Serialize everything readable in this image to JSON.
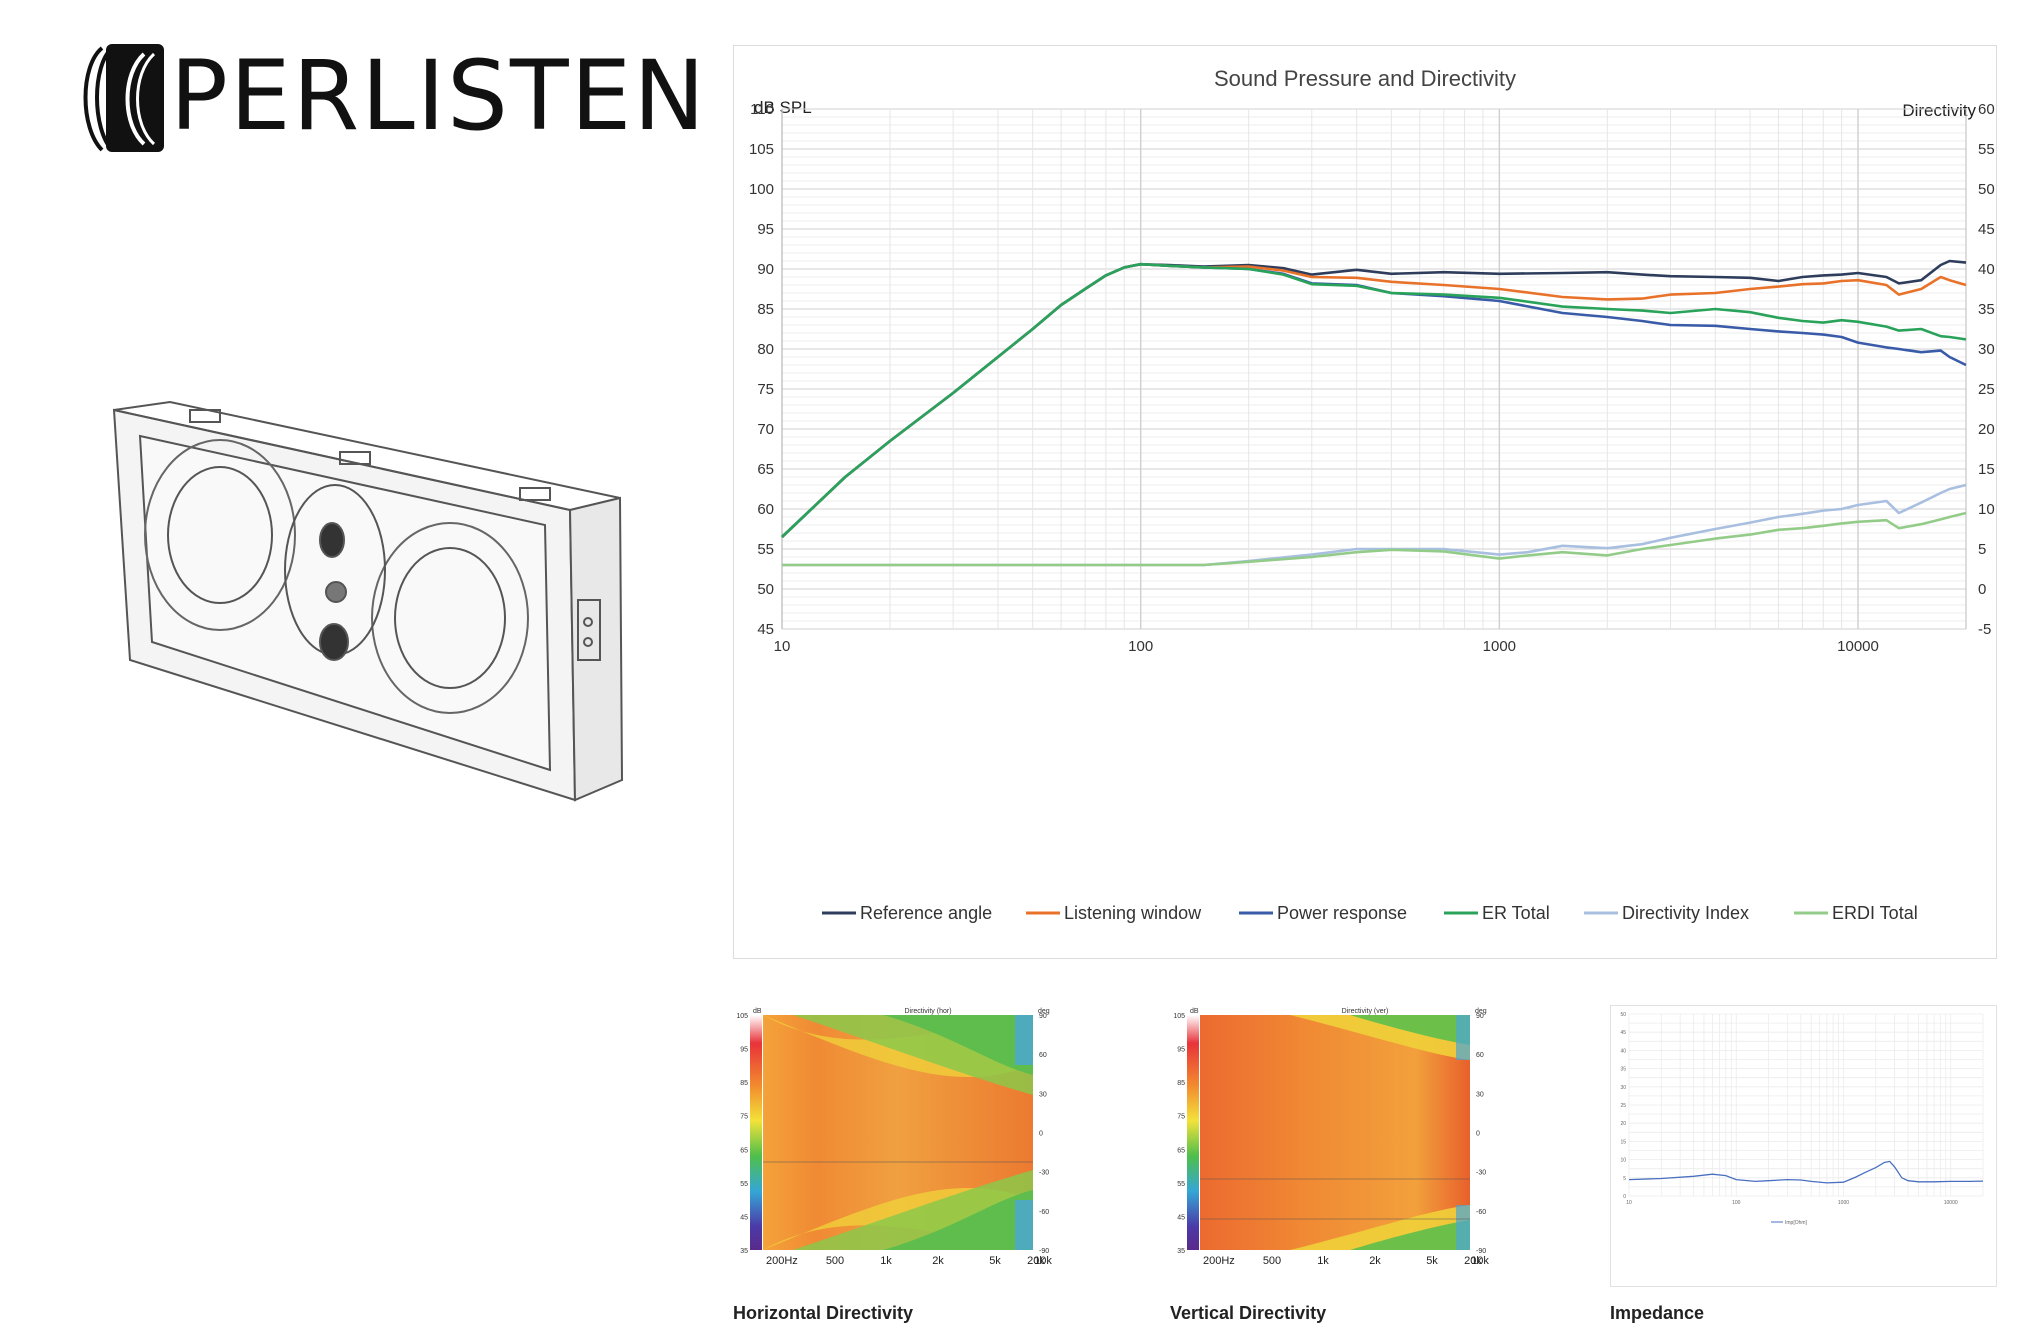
{
  "brand": {
    "name": "PERLISTEN"
  },
  "main_chart": {
    "title": "Sound Pressure and Directivity",
    "ylabel_left": "dB SPL",
    "ylabel_right": "Directivity"
  },
  "captions": {
    "horizontal": "Horizontal Directivity",
    "vertical": "Vertical Directivity",
    "impedance": "Impedance"
  },
  "chart_data": [
    {
      "type": "line",
      "title": "Sound Pressure and Directivity",
      "xlabel": "",
      "ylabel": "dB SPL",
      "ylabel_right": "Directivity",
      "x_scale": "log",
      "xlim": [
        10,
        20000
      ],
      "ylim": [
        45,
        110
      ],
      "ylim_right": [
        -5,
        60
      ],
      "x_ticks": [
        "10",
        "100",
        "1000",
        "10000"
      ],
      "y_ticks": [
        "110",
        "105",
        "100",
        "95",
        "90",
        "85",
        "80",
        "75",
        "70",
        "65",
        "60",
        "55",
        "50",
        "45"
      ],
      "y_ticks_right": [
        "60",
        "55",
        "50",
        "45",
        "40",
        "35",
        "30",
        "25",
        "20",
        "15",
        "10",
        "5",
        "0",
        "-5"
      ],
      "grid": true,
      "legend_position": "bottom",
      "series": [
        {
          "name": "Reference angle",
          "color": "#2f3d5c",
          "axis": "left",
          "x": [
            10,
            15,
            20,
            30,
            40,
            50,
            60,
            70,
            80,
            90,
            100,
            120,
            150,
            200,
            250,
            300,
            400,
            500,
            700,
            1000,
            1500,
            2000,
            2500,
            3000,
            4000,
            5000,
            6000,
            7000,
            8000,
            9000,
            10000,
            12000,
            13000,
            15000,
            17000,
            18000,
            20000
          ],
          "y": [
            56.5,
            64,
            68.5,
            74.5,
            79,
            82.5,
            85.5,
            87.5,
            89.2,
            90.2,
            90.6,
            90.5,
            90.3,
            90.5,
            90.1,
            89.3,
            89.9,
            89.4,
            89.6,
            89.4,
            89.5,
            89.6,
            89.3,
            89.1,
            89.0,
            88.9,
            88.5,
            89.0,
            89.2,
            89.3,
            89.5,
            89.0,
            88.2,
            88.6,
            90.5,
            91.0,
            90.8
          ]
        },
        {
          "name": "Listening window",
          "color": "#e8722a",
          "axis": "left",
          "x": [
            10,
            15,
            20,
            30,
            40,
            50,
            60,
            70,
            80,
            90,
            100,
            120,
            150,
            200,
            250,
            300,
            400,
            500,
            700,
            1000,
            1500,
            2000,
            2500,
            3000,
            4000,
            5000,
            6000,
            7000,
            8000,
            9000,
            10000,
            12000,
            13000,
            15000,
            17000,
            18000,
            20000
          ],
          "y": [
            56.5,
            64,
            68.5,
            74.5,
            79,
            82.5,
            85.5,
            87.5,
            89.2,
            90.2,
            90.6,
            90.4,
            90.2,
            90.3,
            89.8,
            89.0,
            88.9,
            88.4,
            88.0,
            87.5,
            86.5,
            86.2,
            86.3,
            86.8,
            87.0,
            87.5,
            87.8,
            88.1,
            88.2,
            88.5,
            88.6,
            88.0,
            86.8,
            87.5,
            89.0,
            88.6,
            88.0
          ]
        },
        {
          "name": "Power response",
          "color": "#3a5ba8",
          "axis": "left",
          "x": [
            10,
            15,
            20,
            30,
            40,
            50,
            60,
            70,
            80,
            90,
            100,
            120,
            150,
            200,
            250,
            300,
            400,
            500,
            700,
            1000,
            1500,
            2000,
            2500,
            3000,
            4000,
            5000,
            6000,
            7000,
            8000,
            9000,
            10000,
            12000,
            13000,
            15000,
            17000,
            18000,
            20000
          ],
          "y": [
            56.5,
            64,
            68.5,
            74.5,
            79,
            82.5,
            85.5,
            87.5,
            89.2,
            90.2,
            90.6,
            90.4,
            90.2,
            90.0,
            89.4,
            88.2,
            88.0,
            87.0,
            86.6,
            86.0,
            84.5,
            84.0,
            83.5,
            83.0,
            82.9,
            82.5,
            82.2,
            82.0,
            81.8,
            81.5,
            80.8,
            80.2,
            80.0,
            79.6,
            79.8,
            79.0,
            78.0
          ]
        },
        {
          "name": "ER Total",
          "color": "#2aa35a",
          "axis": "left",
          "x": [
            10,
            15,
            20,
            30,
            40,
            50,
            60,
            70,
            80,
            90,
            100,
            120,
            150,
            200,
            250,
            300,
            400,
            500,
            700,
            1000,
            1500,
            2000,
            2500,
            3000,
            4000,
            5000,
            6000,
            7000,
            8000,
            9000,
            10000,
            12000,
            13000,
            15000,
            17000,
            18000,
            20000
          ],
          "y": [
            56.5,
            64,
            68.5,
            74.5,
            79,
            82.5,
            85.5,
            87.5,
            89.2,
            90.2,
            90.6,
            90.4,
            90.2,
            90.0,
            89.3,
            88.1,
            87.9,
            87.0,
            86.8,
            86.4,
            85.3,
            85.0,
            84.8,
            84.5,
            85.0,
            84.6,
            83.9,
            83.5,
            83.3,
            83.6,
            83.4,
            82.8,
            82.3,
            82.5,
            81.6,
            81.5,
            81.2
          ]
        },
        {
          "name": "Directivity Index",
          "color": "#a8bfe0",
          "axis": "right",
          "x": [
            10,
            20,
            50,
            100,
            150,
            200,
            300,
            400,
            500,
            700,
            1000,
            1200,
            1500,
            2000,
            2500,
            3000,
            4000,
            5000,
            6000,
            7000,
            8000,
            9000,
            10000,
            12000,
            13000,
            15000,
            17000,
            18000,
            20000
          ],
          "y": [
            3,
            3,
            3,
            3,
            3,
            3.5,
            4.3,
            5,
            5,
            5,
            4.3,
            4.6,
            5.4,
            5.1,
            5.6,
            6.4,
            7.5,
            8.3,
            9.0,
            9.4,
            9.8,
            10.0,
            10.5,
            11.0,
            9.5,
            10.8,
            12.0,
            12.5,
            13.0
          ]
        },
        {
          "name": "ERDI Total",
          "color": "#93cc88",
          "axis": "right",
          "x": [
            10,
            20,
            50,
            100,
            150,
            200,
            300,
            400,
            500,
            700,
            1000,
            1200,
            1500,
            2000,
            2500,
            3000,
            4000,
            5000,
            6000,
            7000,
            8000,
            9000,
            10000,
            12000,
            13000,
            15000,
            17000,
            18000,
            20000
          ],
          "y": [
            3,
            3,
            3,
            3,
            3,
            3.4,
            4.0,
            4.6,
            4.9,
            4.7,
            3.8,
            4.2,
            4.6,
            4.2,
            5.0,
            5.5,
            6.3,
            6.8,
            7.4,
            7.6,
            7.9,
            8.2,
            8.4,
            8.6,
            7.6,
            8.1,
            8.7,
            9.0,
            9.5
          ]
        }
      ]
    },
    {
      "type": "heatmap",
      "title": "Directivity (hor)",
      "ylabel": "dB",
      "ylabel_right": "deg",
      "x_ticks": [
        "200Hz",
        "500",
        "1k",
        "2k",
        "5k",
        "10k",
        "20k"
      ],
      "y_ticks": [
        "105",
        "95",
        "85",
        "75",
        "65",
        "55",
        "45",
        "35"
      ],
      "y_ticks_right": [
        "90",
        "60",
        "30",
        "0",
        "-30",
        "-60",
        "-90"
      ]
    },
    {
      "type": "heatmap",
      "title": "Directivity (ver)",
      "ylabel": "dB",
      "ylabel_right": "deg",
      "x_ticks": [
        "200Hz",
        "500",
        "1k",
        "2k",
        "5k",
        "10k",
        "20k"
      ],
      "y_ticks": [
        "105",
        "95",
        "85",
        "75",
        "65",
        "55",
        "45",
        "35"
      ],
      "y_ticks_right": [
        "90",
        "60",
        "30",
        "0",
        "-30",
        "-60",
        "-90"
      ]
    },
    {
      "type": "line",
      "title": "",
      "x_scale": "log",
      "xlim": [
        10,
        20000
      ],
      "ylim": [
        0,
        50
      ],
      "y_ticks": [
        "50",
        "45",
        "40",
        "35",
        "30",
        "25",
        "20",
        "15",
        "10",
        "5",
        "0"
      ],
      "x_ticks": [
        "10",
        "100",
        "1000",
        "10000"
      ],
      "legend": [
        "Imp[Ohm]"
      ],
      "series": [
        {
          "name": "Imp[Ohm]",
          "color": "#4a6fc0",
          "x": [
            10,
            20,
            40,
            60,
            80,
            100,
            150,
            200,
            300,
            400,
            500,
            700,
            1000,
            1300,
            1600,
            2000,
            2400,
            2700,
            3000,
            3500,
            4000,
            5000,
            7000,
            10000,
            15000,
            20000
          ],
          "y": [
            4.5,
            4.8,
            5.4,
            6.0,
            5.6,
            4.5,
            4.0,
            4.2,
            4.5,
            4.4,
            4.0,
            3.6,
            3.8,
            5.2,
            6.5,
            7.8,
            9.2,
            9.5,
            8.0,
            5.0,
            4.2,
            3.9,
            3.9,
            4.0,
            4.0,
            4.1
          ]
        }
      ]
    }
  ]
}
